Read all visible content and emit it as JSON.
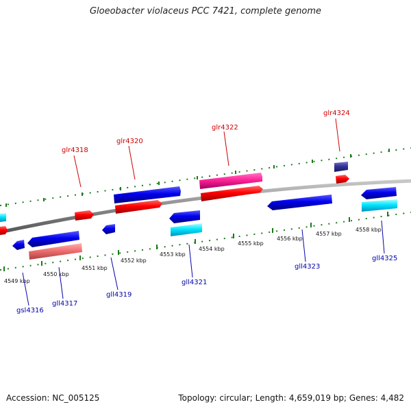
{
  "title": "Gloeobacter violaceus PCC 7421, complete genome",
  "footer": {
    "accession": "Accession: NC_005125",
    "summary": "Topology: circular; Length: 4,659,019 bp; Genes: 4,482"
  },
  "colors": {
    "backbone": "#8c8c8c",
    "forward_label": "#cc0000",
    "reverse_label": "#0000aa",
    "tick": "#1a7a1a"
  },
  "kbp_ticks": [
    "4549 kbp",
    "4550 kbp",
    "4551 kbp",
    "4552 kbp",
    "4553 kbp",
    "4554 kbp",
    "4555 kbp",
    "4556 kbp",
    "4557 kbp",
    "4558 kbp"
  ],
  "gene_labels": {
    "forward": [
      "glr4318",
      "glr4320",
      "glr4322",
      "glr4324"
    ],
    "reverse": [
      "gsl4316",
      "gll4317",
      "gll4319",
      "gll4321",
      "gll4323",
      "gll4325"
    ]
  },
  "features": [
    {
      "type": "CDS",
      "strand": "+",
      "color": "#ff0000"
    },
    {
      "type": "CDS",
      "strand": "+",
      "color": "#0000ee"
    },
    {
      "type": "CDS",
      "strand": "+",
      "color": "#ff2299"
    },
    {
      "type": "CDS",
      "strand": "+",
      "color": "#333399"
    },
    {
      "type": "CDS",
      "strand": "-",
      "color": "#0000ee"
    },
    {
      "type": "CDS",
      "strand": "-",
      "color": "#00e5ff"
    },
    {
      "type": "CDS",
      "strand": "-",
      "color": "#f07070"
    }
  ]
}
